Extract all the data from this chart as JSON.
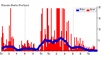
{
  "title_left": "Milwaukee Weather Wind Speed",
  "legend_labels": [
    "Median",
    "Actual"
  ],
  "legend_colors": [
    "#0000ff",
    "#ff0000"
  ],
  "bar_color": "#ff0000",
  "dot_color": "#0000cc",
  "background_color": "#ffffff",
  "grid_color": "#aaaaaa",
  "ylim": [
    0,
    20
  ],
  "ytick_labels": [
    "5",
    "10",
    "15",
    "20"
  ],
  "ytick_vals": [
    5,
    10,
    15,
    20
  ],
  "num_points": 1440,
  "seed": 7,
  "vlines": [
    360,
    720,
    1080
  ],
  "figwidth": 1.6,
  "figheight": 0.87,
  "dpi": 100
}
